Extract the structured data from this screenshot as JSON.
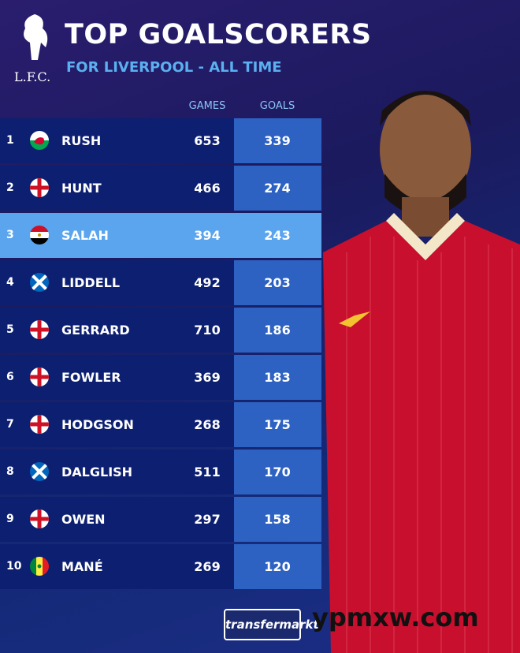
{
  "header": {
    "logo": "L.F.C.",
    "title": "TOP GOALSCORERS",
    "subtitle": "FOR LIVERPOOL - ALL TIME"
  },
  "table": {
    "columns": [
      "GAMES",
      "GOALS"
    ],
    "rows": [
      {
        "rank": 1,
        "name": "RUSH",
        "games": 653,
        "goals": 339
      },
      {
        "rank": 2,
        "name": "HUNT",
        "games": 466,
        "goals": 274
      },
      {
        "rank": 3,
        "name": "SALAH",
        "games": 394,
        "goals": 243
      },
      {
        "rank": 4,
        "name": "LIDDELL",
        "games": 492,
        "goals": 203
      },
      {
        "rank": 5,
        "name": "GERRARD",
        "games": 710,
        "goals": 186
      },
      {
        "rank": 6,
        "name": "FOWLER",
        "games": 369,
        "goals": 183
      },
      {
        "rank": 7,
        "name": "HODGSON",
        "games": 268,
        "goals": 175
      },
      {
        "rank": 8,
        "name": "DALGLISH",
        "games": 511,
        "goals": 170
      },
      {
        "rank": 9,
        "name": "OWEN",
        "games": 297,
        "goals": 158
      },
      {
        "rank": 10,
        "name": "MANÉ",
        "games": 269,
        "goals": 120
      }
    ]
  },
  "footer": {
    "brand": "transfermarkt",
    "watermark": "ypmxw.com"
  }
}
